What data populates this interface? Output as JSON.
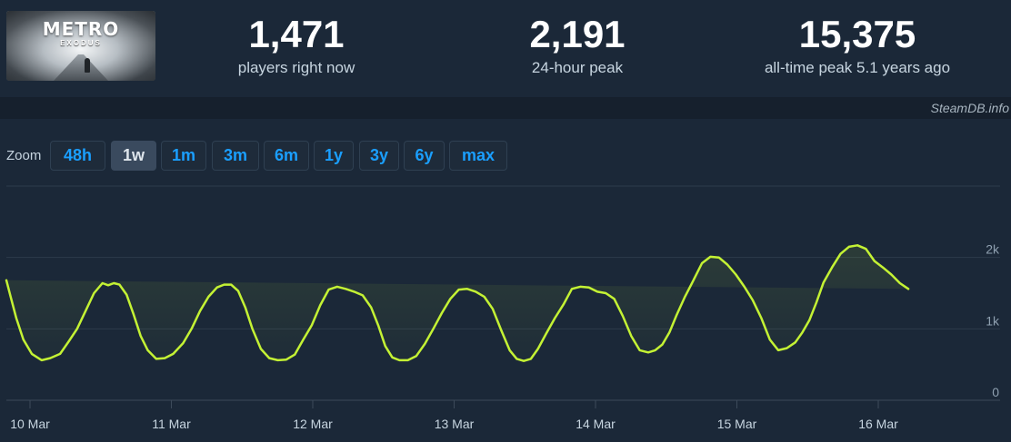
{
  "header": {
    "logo": {
      "brand": "METRO",
      "sub": "EXODUS"
    },
    "stats": [
      {
        "value": "1,471",
        "label": "players right now"
      },
      {
        "value": "2,191",
        "label": "24-hour peak"
      },
      {
        "value": "15,375",
        "label": "all-time peak 5.1 years ago"
      }
    ],
    "credit": "SteamDB.info"
  },
  "zoom": {
    "label": "Zoom",
    "buttons": [
      "48h",
      "1w",
      "1m",
      "3m",
      "6m",
      "1y",
      "3y",
      "6y",
      "max"
    ],
    "active": "1w"
  },
  "colors": {
    "line": "#c4f234",
    "accent": "#1a9fff",
    "background": "#1b2838"
  },
  "chart_data": {
    "type": "line",
    "series": [
      {
        "x_day_offsets": [
          0,
          0.03,
          0.07,
          0.12,
          0.18,
          0.25,
          0.31,
          0.38,
          0.44,
          0.5,
          0.56,
          0.62,
          0.68,
          0.72,
          0.76,
          0.8,
          0.85,
          0.9,
          0.95,
          1.0,
          1.06,
          1.12,
          1.18,
          1.25,
          1.31,
          1.37,
          1.43,
          1.49,
          1.54,
          1.59,
          1.64,
          1.69,
          1.74,
          1.8,
          1.86,
          1.92,
          1.98,
          2.04,
          2.1,
          2.16,
          2.22,
          2.28,
          2.34,
          2.4,
          2.46,
          2.52,
          2.58,
          2.63,
          2.68,
          2.73,
          2.78,
          2.84,
          2.9,
          2.96,
          3.02,
          3.08,
          3.14,
          3.2,
          3.26,
          3.32,
          3.38,
          3.44,
          3.5,
          3.56,
          3.61,
          3.66,
          3.71,
          3.76,
          3.82,
          3.88,
          3.94,
          4.0,
          4.06,
          4.12,
          4.18,
          4.24,
          4.3,
          4.36,
          4.42,
          4.48,
          4.54,
          4.59,
          4.64,
          4.69,
          4.74,
          4.8,
          4.86,
          4.92,
          4.98,
          5.04,
          5.1,
          5.16,
          5.22,
          5.28,
          5.34,
          5.4,
          5.46,
          5.52,
          5.58,
          5.63,
          5.68,
          5.73,
          5.78,
          5.84,
          5.9,
          5.96,
          6.02,
          6.08,
          6.14,
          6.2,
          6.26,
          6.32,
          6.38,
          6.44,
          6.5,
          6.56,
          6.61,
          6.66,
          6.7,
          6.74,
          6.78,
          6.82,
          6.86,
          6.9,
          6.94,
          6.98,
          7.02
        ],
        "values": [
          1680,
          1450,
          1150,
          850,
          650,
          560,
          590,
          650,
          820,
          1000,
          1250,
          1500,
          1640,
          1610,
          1640,
          1620,
          1480,
          1200,
          900,
          700,
          580,
          590,
          650,
          800,
          1000,
          1250,
          1450,
          1580,
          1620,
          1620,
          1530,
          1300,
          1000,
          720,
          590,
          560,
          570,
          640,
          850,
          1050,
          1330,
          1550,
          1590,
          1560,
          1520,
          1470,
          1300,
          1050,
          760,
          600,
          560,
          560,
          620,
          790,
          1000,
          1220,
          1420,
          1550,
          1560,
          1520,
          1450,
          1280,
          980,
          700,
          580,
          550,
          580,
          720,
          940,
          1150,
          1340,
          1560,
          1590,
          1580,
          1520,
          1500,
          1420,
          1180,
          900,
          700,
          670,
          700,
          780,
          950,
          1190,
          1450,
          1680,
          1920,
          2010,
          2000,
          1900,
          1760,
          1590,
          1400,
          1150,
          850,
          700,
          730,
          810,
          950,
          1120,
          1370,
          1650,
          1860,
          2050,
          2150,
          2170,
          2120,
          1950,
          1860,
          1760,
          1640,
          1560
        ]
      }
    ],
    "x_ticks": [
      "10 Mar",
      "11 Mar",
      "12 Mar",
      "13 Mar",
      "14 Mar",
      "15 Mar",
      "16 Mar"
    ],
    "y_ticks": [
      "0",
      "1k",
      "2k"
    ],
    "ylim": [
      0,
      3000
    ],
    "grid": true
  }
}
